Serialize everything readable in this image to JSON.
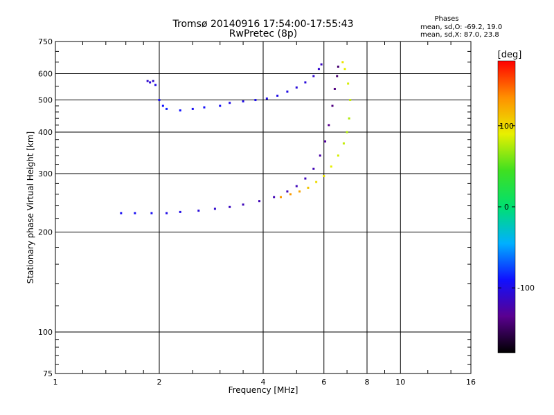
{
  "chart_data": {
    "type": "scatter",
    "title": "Tromsø 20140916 17:54:00-17:55:43",
    "subtitle": "RwPretec (8p)",
    "xlabel": "Frequency [MHz]",
    "ylabel": "Stationary phase Virtual Height [km]",
    "x_scale": "log",
    "y_scale": "log",
    "xlim": [
      1,
      16
    ],
    "ylim": [
      75,
      750
    ],
    "x_ticks": [
      1,
      2,
      4,
      6,
      8,
      10,
      16
    ],
    "y_ticks": [
      75,
      100,
      200,
      300,
      400,
      500,
      600,
      750
    ],
    "grid": true,
    "phases": {
      "header": "Phases",
      "o_stats": "mean, sd,O: -69.2, 19.0",
      "x_stats": "mean, sd,X:  87.0, 23.8"
    },
    "colorbar": {
      "label": "[deg]",
      "range": [
        -180,
        180
      ],
      "ticks": [
        100,
        0,
        -100
      ],
      "colormap": [
        "#000000",
        "#5a0090",
        "#1010ff",
        "#00b0ff",
        "#00e070",
        "#40e020",
        "#e8f000",
        "#ff9000",
        "#ff0000"
      ]
    },
    "series": [
      {
        "points": [
          [
            1.85,
            570,
            -110
          ],
          [
            1.88,
            565,
            -105
          ],
          [
            1.92,
            570,
            -110
          ],
          [
            1.95,
            555,
            -100
          ],
          [
            2.0,
            500,
            -95
          ],
          [
            2.05,
            480,
            -90
          ],
          [
            2.1,
            470,
            -85
          ],
          [
            2.3,
            465,
            -90
          ],
          [
            2.5,
            470,
            -95
          ],
          [
            2.7,
            475,
            -92
          ],
          [
            3.0,
            480,
            -95
          ],
          [
            3.2,
            490,
            -100
          ],
          [
            3.5,
            495,
            -100
          ],
          [
            3.8,
            500,
            -98
          ],
          [
            4.1,
            505,
            -100
          ],
          [
            4.4,
            515,
            -100
          ],
          [
            4.7,
            530,
            -100
          ],
          [
            5.0,
            545,
            -105
          ],
          [
            5.3,
            565,
            -105
          ],
          [
            5.6,
            590,
            -110
          ],
          [
            5.8,
            620,
            -110
          ],
          [
            5.9,
            640,
            -115
          ]
        ]
      },
      {
        "points": [
          [
            1.55,
            228,
            -95
          ],
          [
            1.7,
            228,
            -95
          ],
          [
            1.9,
            228,
            -95
          ],
          [
            2.1,
            228,
            -100
          ],
          [
            2.3,
            230,
            -100
          ],
          [
            2.6,
            232,
            -105
          ],
          [
            2.9,
            235,
            -110
          ],
          [
            3.2,
            238,
            -115
          ],
          [
            3.5,
            242,
            -118
          ],
          [
            3.9,
            248,
            -120
          ],
          [
            4.3,
            255,
            -120
          ],
          [
            4.7,
            265,
            -120
          ],
          [
            5.0,
            275,
            -118
          ],
          [
            5.3,
            290,
            -118
          ],
          [
            5.6,
            310,
            -120
          ],
          [
            5.85,
            340,
            -125
          ],
          [
            6.05,
            375,
            -130
          ],
          [
            6.2,
            420,
            -135
          ],
          [
            6.35,
            480,
            -140
          ],
          [
            6.45,
            540,
            -140
          ],
          [
            6.55,
            590,
            -145
          ],
          [
            6.6,
            630,
            -145
          ]
        ]
      },
      {
        "points": [
          [
            4.5,
            255,
            130
          ],
          [
            4.8,
            260,
            130
          ],
          [
            5.1,
            265,
            125
          ],
          [
            5.4,
            272,
            110
          ],
          [
            5.7,
            283,
            100
          ],
          [
            6.0,
            295,
            95
          ],
          [
            6.3,
            315,
            90
          ],
          [
            6.6,
            340,
            85
          ],
          [
            6.85,
            370,
            80
          ],
          [
            7.0,
            400,
            75
          ],
          [
            7.1,
            440,
            75
          ],
          [
            7.15,
            500,
            80
          ],
          [
            7.05,
            560,
            85
          ],
          [
            6.9,
            620,
            90
          ],
          [
            6.8,
            650,
            95
          ]
        ]
      }
    ]
  }
}
